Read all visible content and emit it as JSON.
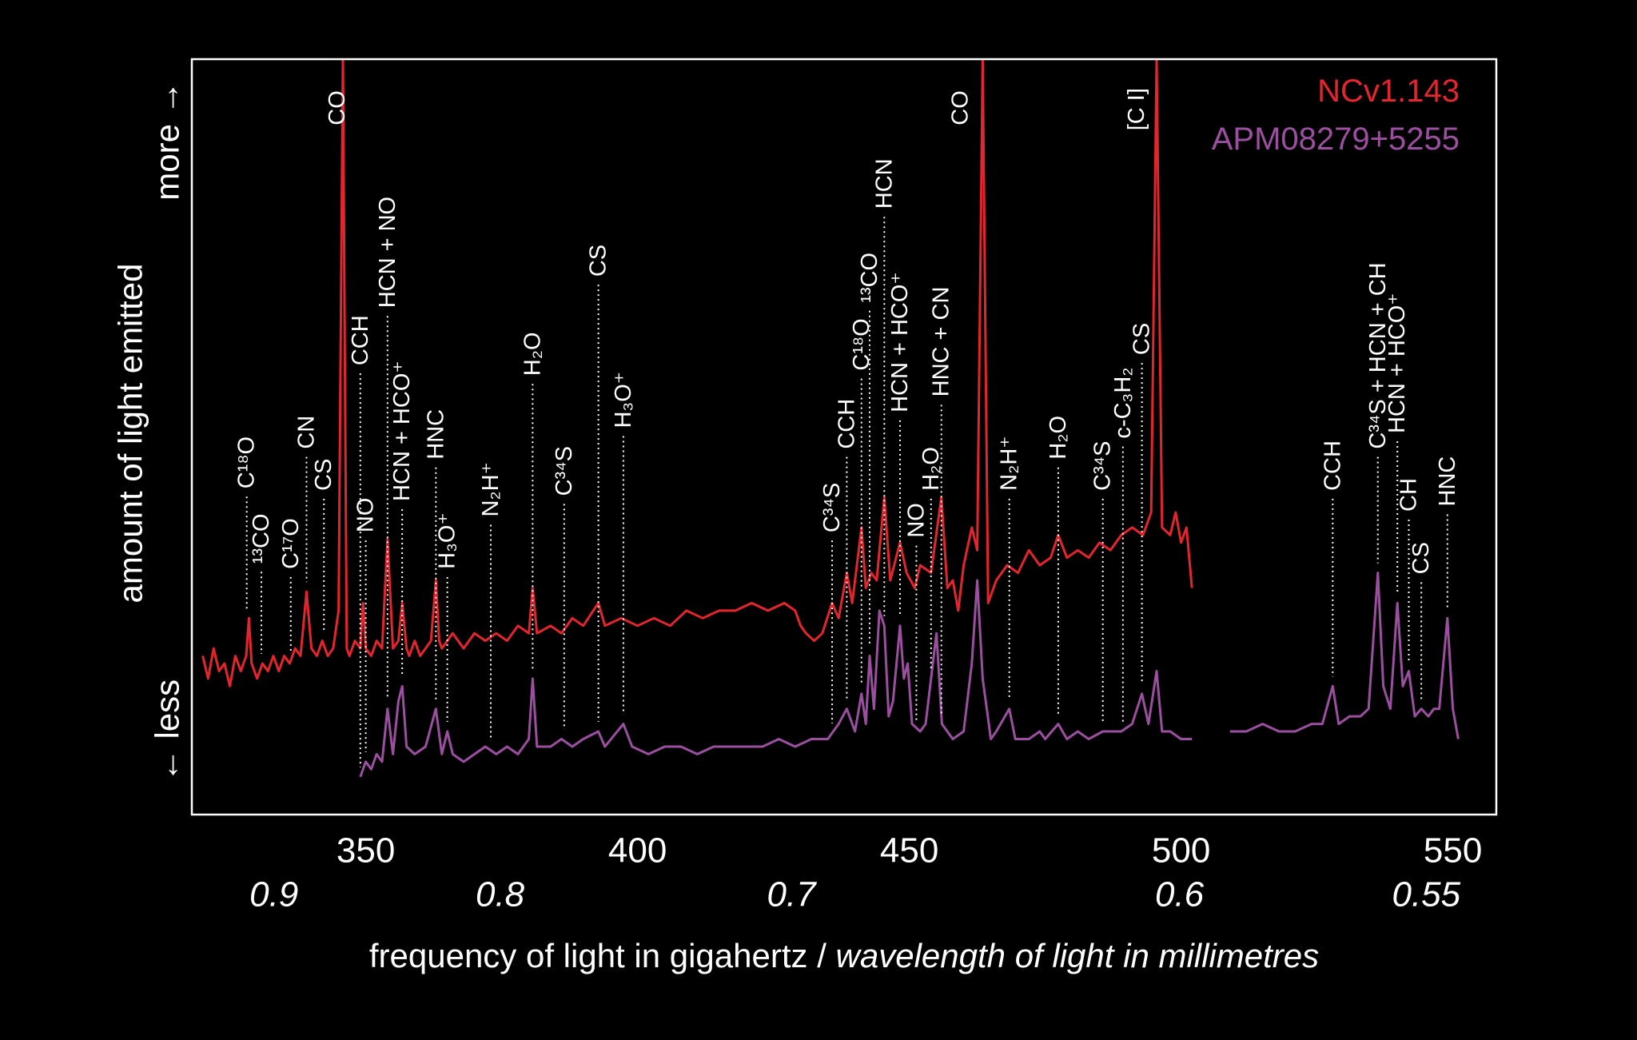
{
  "chart_data": {
    "type": "line",
    "xlabel": "frequency of light in gigahertz /",
    "x2label": "wavelength of light in millimetres",
    "ylabel": "amount of light emitted",
    "ylabel_top": "more →",
    "ylabel_bottom": "← less",
    "xlim": [
      318,
      558
    ],
    "xticks": [
      350,
      400,
      450,
      500,
      550
    ],
    "x2ticks": [
      {
        "value": 333.1,
        "label": "0.9"
      },
      {
        "value": 374.7,
        "label": "0.8"
      },
      {
        "value": 428.3,
        "label": "0.7"
      },
      {
        "value": 499.7,
        "label": "0.6"
      },
      {
        "value": 545.1,
        "label": "0.55"
      }
    ],
    "ylim": [
      0,
      100
    ],
    "legend": "top-right",
    "series": [
      {
        "name": "NCv1.143",
        "color": "#e3262d",
        "x": [
          320,
          321,
          322,
          323,
          324,
          325,
          326,
          327,
          328,
          328.5,
          329,
          330,
          331,
          332,
          333,
          334,
          335,
          336,
          337,
          338,
          339.1,
          340,
          341,
          342,
          343,
          344,
          345,
          345.8,
          346.5,
          347,
          348,
          349,
          349.5,
          350,
          351,
          352,
          353,
          354,
          355,
          356,
          356.7,
          357.5,
          358,
          359,
          360,
          361,
          362,
          362.9,
          363.5,
          364,
          366,
          368,
          370,
          372,
          374,
          376,
          378,
          380,
          380.7,
          381.5,
          384,
          386,
          388,
          390,
          392.8,
          394,
          397,
          400,
          403,
          406,
          409,
          412,
          415,
          418,
          421,
          424,
          427,
          429,
          430,
          431,
          432.5,
          434,
          435.8,
          437,
          438.5,
          439.5,
          441.2,
          442,
          443,
          444,
          445.4,
          446.5,
          448.3,
          449.5,
          451,
          452,
          454,
          455.9,
          457,
          458,
          459,
          460,
          461.5,
          462.5,
          463.5,
          464.5,
          466,
          468,
          470,
          472,
          474,
          476,
          477.4,
          479,
          481,
          483,
          485,
          487,
          489,
          491,
          493,
          494.5,
          495.5,
          496.5,
          498,
          499,
          500,
          501,
          502
        ],
        "values": [
          21,
          18,
          22,
          19,
          20,
          17,
          21,
          19,
          21,
          26,
          20,
          18,
          20,
          19,
          21,
          19,
          21,
          20,
          22,
          21,
          29.5,
          22,
          21,
          23,
          21,
          22,
          27,
          100,
          22,
          21,
          23,
          22,
          28,
          22,
          21,
          23,
          22,
          36.5,
          22,
          23,
          28,
          22,
          21,
          23,
          21,
          22,
          23,
          31,
          23,
          22,
          24,
          22,
          24,
          23,
          24,
          23,
          25,
          24,
          30,
          24,
          25,
          24,
          26,
          25,
          28,
          25,
          26,
          25,
          26,
          25,
          27,
          26,
          27,
          27,
          28,
          27,
          28,
          27,
          25,
          24,
          23,
          24,
          28,
          26,
          32,
          28,
          38,
          30,
          32,
          31,
          42,
          31,
          36,
          32,
          30,
          33,
          32,
          42,
          30,
          31,
          27,
          33,
          38,
          35,
          100,
          28,
          31,
          33,
          32,
          35,
          33,
          34,
          37,
          34,
          35,
          34,
          36,
          35,
          37,
          38,
          37,
          40,
          100,
          38,
          37,
          40,
          36,
          38,
          30
        ]
      },
      {
        "name": "APM08279+5255",
        "color": "#9b4f9f",
        "x": [
          349,
          350,
          351,
          352,
          353,
          354,
          355,
          356,
          356.7,
          357.5,
          359,
          361,
          362.9,
          364,
          365,
          366,
          368,
          370,
          372,
          374,
          376,
          378,
          380,
          380.7,
          381.5,
          384,
          386,
          388,
          390,
          392.8,
          394,
          397.4,
          399,
          402,
          405,
          408,
          411,
          414,
          417,
          420,
          423,
          426,
          429,
          432,
          435,
          437,
          438.5,
          440,
          441.2,
          442,
          442.7,
          443.5,
          444.5,
          445.4,
          446.2,
          447,
          448.3,
          449,
          449.7,
          450.5,
          452,
          453,
          455,
          456,
          458,
          460,
          461.5,
          462.5,
          463.5,
          465,
          466,
          468.4,
          469.5,
          472,
          474,
          475,
          477.4,
          479,
          481,
          483,
          485.6,
          487,
          489,
          491,
          492.8,
          494,
          495.5,
          496.5,
          498,
          500,
          502,
          505,
          509,
          512,
          515,
          518,
          521,
          524,
          526,
          527.9,
          529,
          531,
          533,
          534.5,
          536.2,
          537.2,
          538.5,
          539.8,
          540.8,
          541.9,
          543,
          544.2,
          545.5,
          546.5,
          547.5,
          549,
          550,
          551
        ],
        "values": [
          5,
          7,
          6,
          8,
          7,
          14,
          8,
          15,
          17,
          9,
          8,
          9,
          14,
          8,
          11,
          8,
          7,
          8,
          9,
          8,
          9,
          8,
          10,
          18,
          9,
          9,
          10,
          9,
          10,
          11,
          9,
          12,
          9,
          8,
          9,
          9,
          8,
          9,
          9,
          9,
          9,
          10,
          9,
          10,
          10,
          12,
          14,
          11,
          16,
          12,
          21,
          14,
          27,
          25,
          13,
          15,
          25,
          18,
          20,
          12,
          11,
          12,
          24,
          12,
          10,
          11,
          20,
          31,
          18,
          10,
          11,
          14,
          10,
          10,
          11,
          10,
          12,
          10,
          11,
          10,
          11,
          11,
          11,
          12,
          16,
          12,
          19,
          11,
          11,
          10,
          10,
          null,
          11,
          11,
          12,
          11,
          11,
          12,
          12,
          17,
          12,
          13,
          13,
          14,
          32,
          17,
          14,
          28,
          17,
          19,
          13,
          14,
          13,
          14,
          14,
          26,
          14,
          10
        ]
      }
    ],
    "annotations": [
      {
        "x": 328.1,
        "text": "C¹⁸O"
      },
      {
        "x": 330.8,
        "text": "¹³CO"
      },
      {
        "x": 336.2,
        "text": "C¹⁷O"
      },
      {
        "x": 339.1,
        "text": "CN"
      },
      {
        "x": 342.3,
        "text": "CS"
      },
      {
        "x": 344.8,
        "text": "CO"
      },
      {
        "x": 349.0,
        "text": "CCH"
      },
      {
        "x": 350.0,
        "text": "NO"
      },
      {
        "x": 354.0,
        "text": "HCN + NO"
      },
      {
        "x": 356.7,
        "text": "HCN + HCO⁺"
      },
      {
        "x": 362.9,
        "text": "HNC"
      },
      {
        "x": 365.0,
        "text": "H₃O⁺"
      },
      {
        "x": 373.0,
        "text": "N₂H⁺"
      },
      {
        "x": 380.7,
        "text": "H₂O"
      },
      {
        "x": 386.5,
        "text": "C³⁴S"
      },
      {
        "x": 392.8,
        "text": "CS"
      },
      {
        "x": 397.4,
        "text": "H₃O⁺"
      },
      {
        "x": 435.8,
        "text": "C³⁴S"
      },
      {
        "x": 438.5,
        "text": "CCH"
      },
      {
        "x": 441.2,
        "text": "C¹⁸O"
      },
      {
        "x": 442.7,
        "text": "¹³CO"
      },
      {
        "x": 445.4,
        "text": "HCN"
      },
      {
        "x": 448.3,
        "text": "HCN + HCO⁺"
      },
      {
        "x": 451.3,
        "text": "NO"
      },
      {
        "x": 454.0,
        "text": "H₂O"
      },
      {
        "x": 455.9,
        "text": "HNC + CN"
      },
      {
        "x": 459.4,
        "text": "CO"
      },
      {
        "x": 468.4,
        "text": "N₂H⁺"
      },
      {
        "x": 477.4,
        "text": "H₂O"
      },
      {
        "x": 485.6,
        "text": "C³⁴S"
      },
      {
        "x": 489.3,
        "text": "c-C₃H₂"
      },
      {
        "x": 491.8,
        "text": "[C I]"
      },
      {
        "x": 492.8,
        "text": "CS"
      },
      {
        "x": 527.9,
        "text": "CCH"
      },
      {
        "x": 536.2,
        "text": "C³⁴S + HCN + CH"
      },
      {
        "x": 539.8,
        "text": "HCN + HCO⁺"
      },
      {
        "x": 541.9,
        "text": "CH"
      },
      {
        "x": 544.2,
        "text": "CS"
      },
      {
        "x": 549.0,
        "text": "HNC"
      }
    ]
  }
}
